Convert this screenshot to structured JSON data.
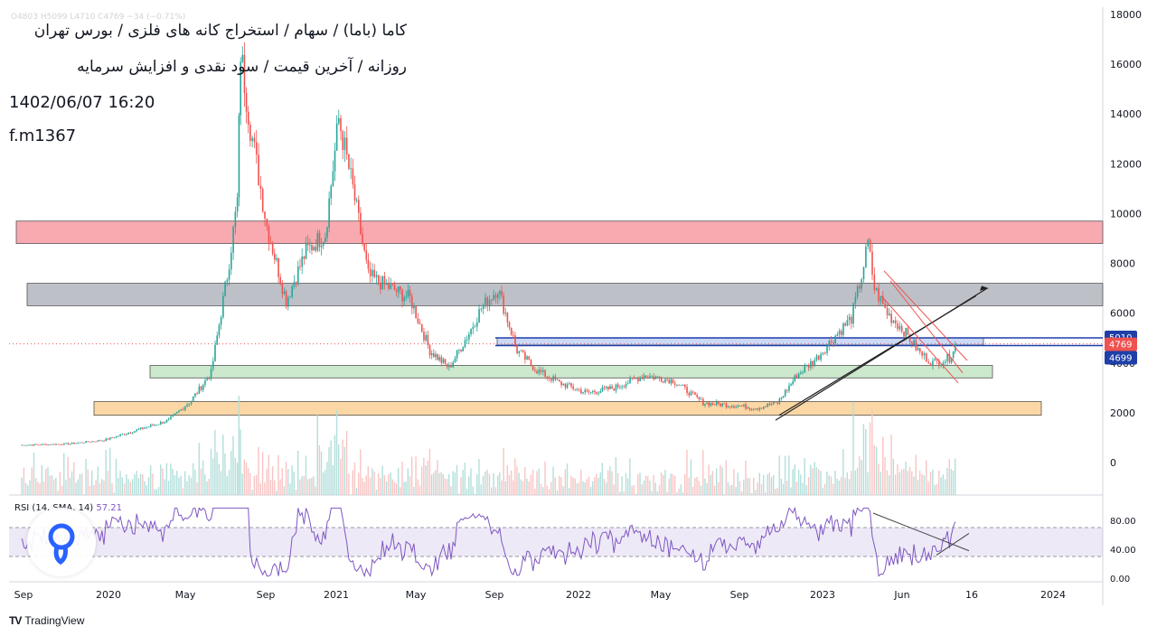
{
  "header": {
    "title": "کاما (باما) / سهام / استخراج کانه های فلزی / بورس تهران",
    "subtitle": "روزانه / آخرین قیمت / سود نقدی و افزایش سرمایه",
    "datetime": "1402/06/07 16:20",
    "author": "f.m1367",
    "ohlc": "O4803 H5099 L4710 C4769 −34 (−0.71%)"
  },
  "footer": {
    "brand": "TradingView"
  },
  "colors": {
    "up": "#26a69a",
    "down": "#ef5350",
    "rsi": "#7e57c2",
    "zone_red": "#f7a1a7",
    "zone_gray": "#b7b9c2",
    "zone_blue": "#c5d4f5",
    "zone_green": "#c6e6c8",
    "zone_orange": "#fbd39b"
  },
  "chart_data": [
    {
      "type": "line",
      "ylim": [
        0,
        18000
      ],
      "yticks": [
        "18000",
        "16000",
        "14000",
        "12000",
        "10000",
        "8000",
        "6000",
        "4000",
        "2000",
        "0"
      ],
      "ytick_values": [
        18000,
        16000,
        14000,
        12000,
        10000,
        8000,
        6000,
        4000,
        2000,
        0
      ],
      "xticks": [
        "Sep",
        "2020",
        "May",
        "Sep",
        "2021",
        "May",
        "Sep",
        "2022",
        "May",
        "Sep",
        "2023",
        "Jun",
        "16",
        "2024"
      ],
      "x_dates": [
        "2019-09-01",
        "2019-11-15",
        "2020-01-10",
        "2020-03-01",
        "2020-04-20",
        "2020-05-25",
        "2020-06-25",
        "2020-07-20",
        "2020-08-05",
        "2020-08-10",
        "2020-08-25",
        "2020-09-20",
        "2020-10-20",
        "2020-11-20",
        "2020-12-20",
        "2021-01-10",
        "2021-02-01",
        "2021-02-25",
        "2021-04-01",
        "2021-05-01",
        "2021-06-01",
        "2021-07-01",
        "2021-08-01",
        "2021-08-20",
        "2021-09-15",
        "2021-10-15",
        "2021-11-15",
        "2021-12-20",
        "2022-02-01",
        "2022-03-15",
        "2022-05-01",
        "2022-06-15",
        "2022-08-01",
        "2022-09-15",
        "2022-10-25",
        "2022-11-25",
        "2022-12-25",
        "2023-01-25",
        "2023-02-20",
        "2023-03-20",
        "2023-04-05",
        "2023-04-15",
        "2023-04-25",
        "2023-05-15",
        "2023-06-10",
        "2023-07-05",
        "2023-07-25",
        "2023-08-20",
        "2023-08-29"
      ],
      "close": [
        700,
        750,
        900,
        1300,
        1700,
        2500,
        3600,
        7500,
        10500,
        16500,
        13500,
        9500,
        6500,
        8500,
        9200,
        13800,
        11000,
        7500,
        7000,
        6600,
        4500,
        3800,
        5200,
        6200,
        7000,
        4500,
        3700,
        3200,
        2800,
        3000,
        3500,
        3300,
        2400,
        2300,
        2200,
        2400,
        3500,
        4200,
        5000,
        5800,
        7500,
        8800,
        7000,
        6000,
        5300,
        4400,
        4000,
        4200,
        4769
      ],
      "volume_scale_hint": "relative",
      "rsi": {
        "ylim": [
          0,
          100
        ],
        "yticks": [
          "80.00",
          "40.00",
          "0.00"
        ],
        "band": [
          30,
          70
        ],
        "last": 57.21
      },
      "price_labels": [
        "5010",
        "4769",
        "4699"
      ],
      "price_label_values": [
        5010,
        4769,
        4699
      ],
      "zones": [
        {
          "color": "zone_red",
          "from": 8800,
          "to": 9700
        },
        {
          "color": "zone_gray",
          "from": 6300,
          "to": 7200
        },
        {
          "color": "zone_blue",
          "from": 4720,
          "to": 5010
        },
        {
          "color": "zone_green",
          "from": 3400,
          "to": 3900
        },
        {
          "color": "zone_orange",
          "from": 1900,
          "to": 2450
        }
      ],
      "rsi_label": {
        "name": "RSI (14, SMA, 14)",
        "value": "57.21"
      }
    }
  ]
}
